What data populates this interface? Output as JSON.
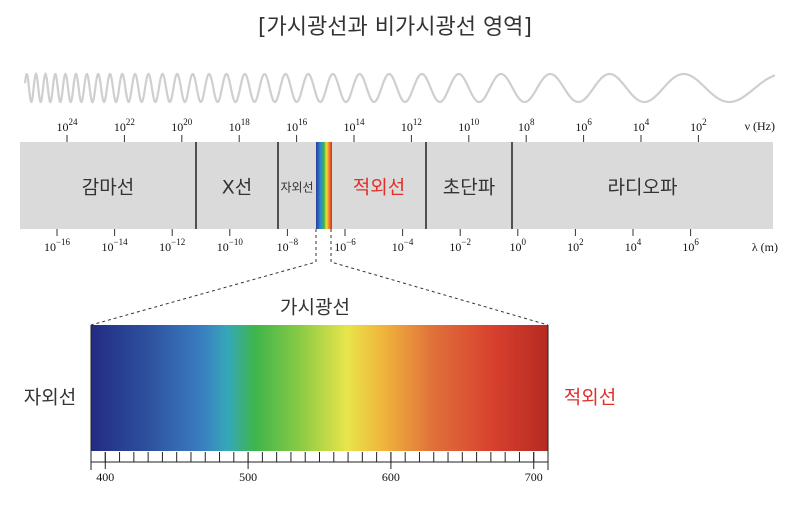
{
  "title": "[가시광선과 비가시광선 영역]",
  "frequency_axis": {
    "unit": "ν (Hz)",
    "base": "10",
    "exponents": [
      "24",
      "22",
      "20",
      "18",
      "16",
      "14",
      "12",
      "10",
      "8",
      "6",
      "4",
      "2"
    ]
  },
  "wavelength_axis": {
    "unit": "λ (m)",
    "base": "10",
    "exponents": [
      "−16",
      "−14",
      "−12",
      "−10",
      "−8",
      "−6",
      "−4",
      "−2",
      "0",
      "2",
      "4",
      "6"
    ]
  },
  "regions": [
    {
      "label": "감마선",
      "color": "#333333"
    },
    {
      "label": "X선",
      "color": "#333333"
    },
    {
      "label": "자외선",
      "color": "#333333"
    },
    {
      "label": "적외선",
      "color": "#e0302a"
    },
    {
      "label": "초단파",
      "color": "#333333"
    },
    {
      "label": "라디오파",
      "color": "#333333"
    }
  ],
  "visible": {
    "label": "가시광선",
    "left_label": "자외선",
    "right_label": "적외선",
    "right_color": "#e0302a",
    "scale": {
      "xlim": [
        390,
        710
      ],
      "ticks": [
        400,
        500,
        600,
        700
      ],
      "minor_ticks": [
        390,
        400,
        410,
        420,
        430,
        440,
        450,
        460,
        470,
        480,
        490,
        500,
        510,
        520,
        530,
        540,
        550,
        560,
        570,
        580,
        590,
        600,
        610,
        620,
        630,
        640,
        650,
        660,
        670,
        680,
        690,
        700,
        710
      ]
    }
  }
}
